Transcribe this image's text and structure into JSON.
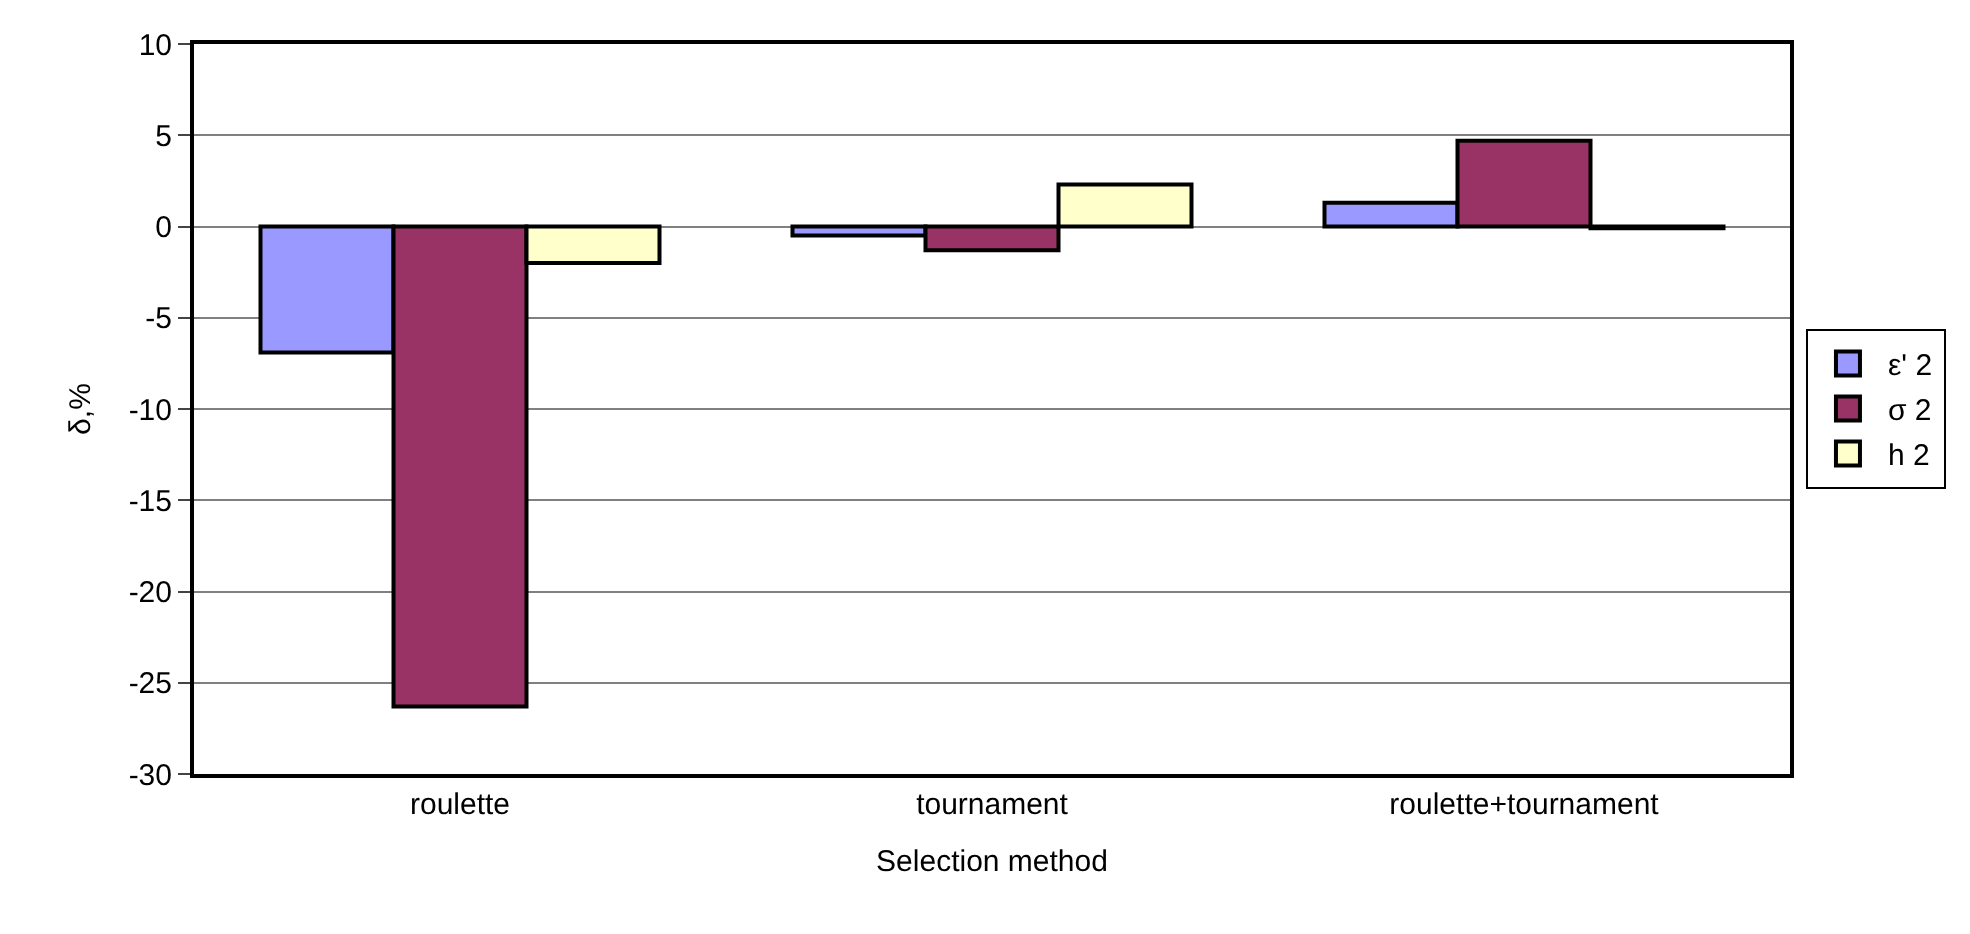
{
  "chart_data": {
    "type": "bar",
    "xlabel": "Selection method",
    "ylabel": "δ,%",
    "categories": [
      "roulette",
      "tournament",
      "roulette+tournament"
    ],
    "series": [
      {
        "name": "ε' 2",
        "color": "#9999ff",
        "values": [
          -6.9,
          -0.5,
          1.3
        ]
      },
      {
        "name": "σ 2",
        "color": "#993366",
        "values": [
          -26.3,
          -1.3,
          4.7
        ]
      },
      {
        "name": "h 2",
        "color": "#ffffcc",
        "values": [
          -2.0,
          2.3,
          -0.1
        ]
      }
    ],
    "ylim": [
      -30,
      10
    ],
    "yticks": [
      -30,
      -25,
      -20,
      -15,
      -10,
      -5,
      0,
      5,
      10
    ],
    "grid": "y",
    "legend": "right"
  }
}
